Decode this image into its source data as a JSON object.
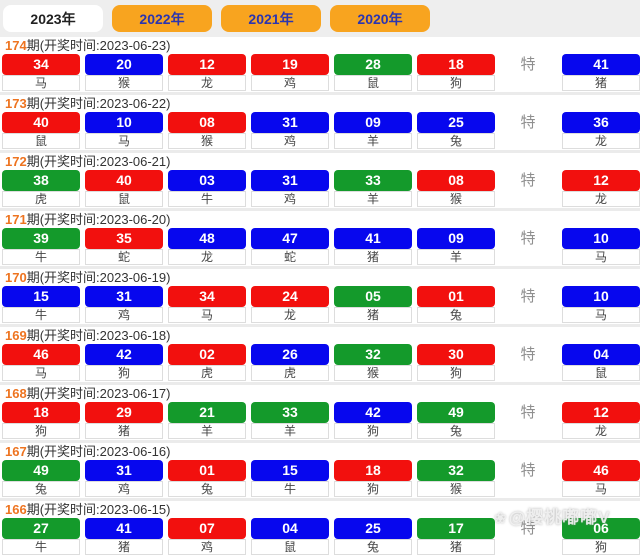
{
  "colors": {
    "red": "#f2100e",
    "blue": "#0707ee",
    "green": "#149a2b",
    "tab_bg": "#f8a41f",
    "tab_text": "#2b35b0",
    "tab_active_bg": "#ffffff",
    "tab_active_text": "#222222",
    "period": "#ee7420",
    "te": "#8f8f8f"
  },
  "tab_bar": {
    "tabs": [
      {
        "label": "2023年",
        "active": true
      },
      {
        "label": "2022年",
        "active": false
      },
      {
        "label": "2021年",
        "active": false
      },
      {
        "label": "2020年",
        "active": false
      }
    ]
  },
  "te_label": "特",
  "watermark": {
    "icon": "cherry-blossom",
    "glyph": "❀",
    "text": "@樱桃嘟嘟V"
  },
  "rows": [
    {
      "period": "174",
      "suffix": "期(开奖时间:2023-06-23)",
      "balls": [
        {
          "num": "34",
          "color": "red",
          "zodiac": "马"
        },
        {
          "num": "20",
          "color": "blue",
          "zodiac": "猴"
        },
        {
          "num": "12",
          "color": "red",
          "zodiac": "龙"
        },
        {
          "num": "19",
          "color": "red",
          "zodiac": "鸡"
        },
        {
          "num": "28",
          "color": "green",
          "zodiac": "鼠"
        },
        {
          "num": "18",
          "color": "red",
          "zodiac": "狗"
        }
      ],
      "special": {
        "num": "41",
        "color": "blue",
        "zodiac": "猪"
      }
    },
    {
      "period": "173",
      "suffix": "期(开奖时间:2023-06-22)",
      "balls": [
        {
          "num": "40",
          "color": "red",
          "zodiac": "鼠"
        },
        {
          "num": "10",
          "color": "blue",
          "zodiac": "马"
        },
        {
          "num": "08",
          "color": "red",
          "zodiac": "猴"
        },
        {
          "num": "31",
          "color": "blue",
          "zodiac": "鸡"
        },
        {
          "num": "09",
          "color": "blue",
          "zodiac": "羊"
        },
        {
          "num": "25",
          "color": "blue",
          "zodiac": "兔"
        }
      ],
      "special": {
        "num": "36",
        "color": "blue",
        "zodiac": "龙"
      }
    },
    {
      "period": "172",
      "suffix": "期(开奖时间:2023-06-21)",
      "balls": [
        {
          "num": "38",
          "color": "green",
          "zodiac": "虎"
        },
        {
          "num": "40",
          "color": "red",
          "zodiac": "鼠"
        },
        {
          "num": "03",
          "color": "blue",
          "zodiac": "牛"
        },
        {
          "num": "31",
          "color": "blue",
          "zodiac": "鸡"
        },
        {
          "num": "33",
          "color": "green",
          "zodiac": "羊"
        },
        {
          "num": "08",
          "color": "red",
          "zodiac": "猴"
        }
      ],
      "special": {
        "num": "12",
        "color": "red",
        "zodiac": "龙"
      }
    },
    {
      "period": "171",
      "suffix": "期(开奖时间:2023-06-20)",
      "balls": [
        {
          "num": "39",
          "color": "green",
          "zodiac": "牛"
        },
        {
          "num": "35",
          "color": "red",
          "zodiac": "蛇"
        },
        {
          "num": "48",
          "color": "blue",
          "zodiac": "龙"
        },
        {
          "num": "47",
          "color": "blue",
          "zodiac": "蛇"
        },
        {
          "num": "41",
          "color": "blue",
          "zodiac": "猪"
        },
        {
          "num": "09",
          "color": "blue",
          "zodiac": "羊"
        }
      ],
      "special": {
        "num": "10",
        "color": "blue",
        "zodiac": "马"
      }
    },
    {
      "period": "170",
      "suffix": "期(开奖时间:2023-06-19)",
      "balls": [
        {
          "num": "15",
          "color": "blue",
          "zodiac": "牛"
        },
        {
          "num": "31",
          "color": "blue",
          "zodiac": "鸡"
        },
        {
          "num": "34",
          "color": "red",
          "zodiac": "马"
        },
        {
          "num": "24",
          "color": "red",
          "zodiac": "龙"
        },
        {
          "num": "05",
          "color": "green",
          "zodiac": "猪"
        },
        {
          "num": "01",
          "color": "red",
          "zodiac": "兔"
        }
      ],
      "special": {
        "num": "10",
        "color": "blue",
        "zodiac": "马"
      }
    },
    {
      "period": "169",
      "suffix": "期(开奖时间:2023-06-18)",
      "balls": [
        {
          "num": "46",
          "color": "red",
          "zodiac": "马"
        },
        {
          "num": "42",
          "color": "blue",
          "zodiac": "狗"
        },
        {
          "num": "02",
          "color": "red",
          "zodiac": "虎"
        },
        {
          "num": "26",
          "color": "blue",
          "zodiac": "虎"
        },
        {
          "num": "32",
          "color": "green",
          "zodiac": "猴"
        },
        {
          "num": "30",
          "color": "red",
          "zodiac": "狗"
        }
      ],
      "special": {
        "num": "04",
        "color": "blue",
        "zodiac": "鼠"
      }
    },
    {
      "period": "168",
      "suffix": "期(开奖时间:2023-06-17)",
      "balls": [
        {
          "num": "18",
          "color": "red",
          "zodiac": "狗"
        },
        {
          "num": "29",
          "color": "red",
          "zodiac": "猪"
        },
        {
          "num": "21",
          "color": "green",
          "zodiac": "羊"
        },
        {
          "num": "33",
          "color": "green",
          "zodiac": "羊"
        },
        {
          "num": "42",
          "color": "blue",
          "zodiac": "狗"
        },
        {
          "num": "49",
          "color": "green",
          "zodiac": "兔"
        }
      ],
      "special": {
        "num": "12",
        "color": "red",
        "zodiac": "龙"
      }
    },
    {
      "period": "167",
      "suffix": "期(开奖时间:2023-06-16)",
      "balls": [
        {
          "num": "49",
          "color": "green",
          "zodiac": "兔"
        },
        {
          "num": "31",
          "color": "blue",
          "zodiac": "鸡"
        },
        {
          "num": "01",
          "color": "red",
          "zodiac": "兔"
        },
        {
          "num": "15",
          "color": "blue",
          "zodiac": "牛"
        },
        {
          "num": "18",
          "color": "red",
          "zodiac": "狗"
        },
        {
          "num": "32",
          "color": "green",
          "zodiac": "猴"
        }
      ],
      "special": {
        "num": "46",
        "color": "red",
        "zodiac": "马"
      }
    },
    {
      "period": "166",
      "suffix": "期(开奖时间:2023-06-15)",
      "balls": [
        {
          "num": "27",
          "color": "green",
          "zodiac": "牛"
        },
        {
          "num": "41",
          "color": "blue",
          "zodiac": "猪"
        },
        {
          "num": "07",
          "color": "red",
          "zodiac": "鸡"
        },
        {
          "num": "04",
          "color": "blue",
          "zodiac": "鼠"
        },
        {
          "num": "25",
          "color": "blue",
          "zodiac": "兔"
        },
        {
          "num": "17",
          "color": "green",
          "zodiac": "猪"
        }
      ],
      "special": {
        "num": "06",
        "color": "green",
        "zodiac": "狗"
      }
    }
  ]
}
